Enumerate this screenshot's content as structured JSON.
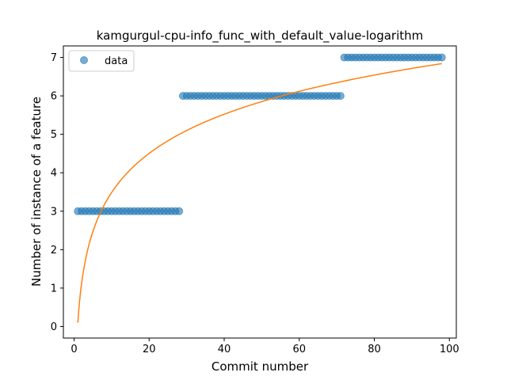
{
  "chart_data": {
    "type": "scatter",
    "title": "kamgurgul-cpu-info_func_with_default_value-logarithm",
    "xlabel": "Commit number",
    "ylabel": "Number of instance of a feature",
    "xlim": [
      -2.85,
      101.85
    ],
    "ylim": [
      -0.3,
      7.3
    ],
    "xticks": [
      0,
      20,
      40,
      60,
      80,
      100
    ],
    "yticks": [
      0,
      1,
      2,
      3,
      4,
      5,
      6,
      7
    ],
    "grid": false,
    "legend_position": "top-left",
    "series": [
      {
        "name": "data",
        "kind": "scatter",
        "color": "#1f77b4",
        "segments": [
          {
            "x_start": 1,
            "x_end": 28,
            "y": 3
          },
          {
            "x_start": 29,
            "x_end": 71,
            "y": 6
          },
          {
            "x_start": 72,
            "x_end": 98,
            "y": 7
          }
        ]
      },
      {
        "kind": "line",
        "color": "#ff7f0e",
        "model": "logarithmic",
        "x_range": [
          1,
          98
        ],
        "coefficients": {
          "a": 0.1,
          "b": 1.47
        }
      }
    ]
  }
}
